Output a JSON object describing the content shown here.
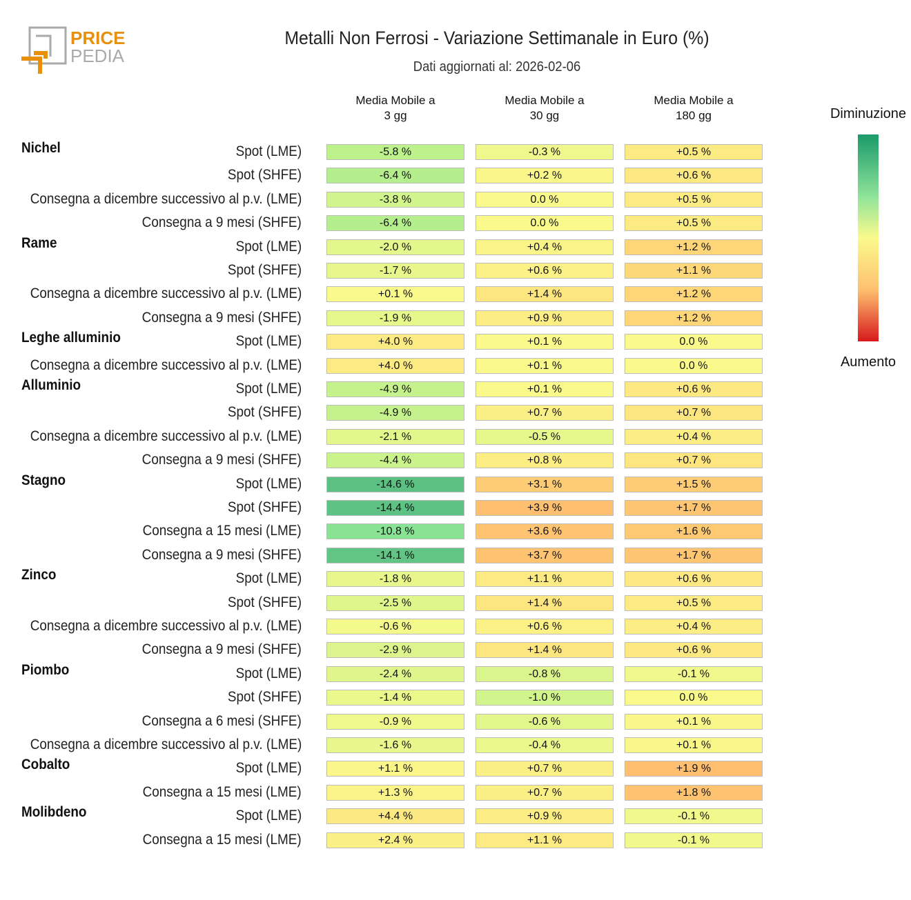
{
  "logo": {
    "line1": "PRICE",
    "line2": "PEDIA"
  },
  "chart_data": {
    "type": "heatmap",
    "title": "Metalli Non Ferrosi - Variazione Settimanale in Euro (%)",
    "subtitle": "Dati aggiornati al: 2026-02-06",
    "columns": [
      "Media Mobile a\n3 gg",
      "Media Mobile a\n30 gg",
      "Media Mobile a\n180 gg"
    ],
    "legend": {
      "top": "Diminuzione",
      "bottom": "Aumento",
      "colors": [
        "#1a9a6a",
        "#fafa8c",
        "#d7191c"
      ]
    },
    "rows": [
      {
        "group": "Nichel",
        "label": "Spot (LME)",
        "values": [
          -5.8,
          -0.3,
          0.5
        ]
      },
      {
        "group": "",
        "label": "Spot (SHFE)",
        "values": [
          -6.4,
          0.2,
          0.6
        ]
      },
      {
        "group": "",
        "label": "Consegna a dicembre successivo al p.v. (LME)",
        "values": [
          -3.8,
          0.0,
          0.5
        ]
      },
      {
        "group": "",
        "label": "Consegna a 9 mesi (SHFE)",
        "values": [
          -6.4,
          0.0,
          0.5
        ]
      },
      {
        "group": "Rame",
        "label": "Spot (LME)",
        "values": [
          -2.0,
          0.4,
          1.2
        ]
      },
      {
        "group": "",
        "label": "Spot (SHFE)",
        "values": [
          -1.7,
          0.6,
          1.1
        ]
      },
      {
        "group": "",
        "label": "Consegna a dicembre successivo al p.v. (LME)",
        "values": [
          0.1,
          1.4,
          1.2
        ]
      },
      {
        "group": "",
        "label": "Consegna a 9 mesi (SHFE)",
        "values": [
          -1.9,
          0.9,
          1.2
        ]
      },
      {
        "group": "Leghe alluminio",
        "label": "Spot (LME)",
        "values": [
          4.0,
          0.1,
          0.0
        ]
      },
      {
        "group": "",
        "label": "Consegna a dicembre successivo al p.v. (LME)",
        "values": [
          4.0,
          0.1,
          0.0
        ]
      },
      {
        "group": "Alluminio",
        "label": "Spot (LME)",
        "values": [
          -4.9,
          0.1,
          0.6
        ]
      },
      {
        "group": "",
        "label": "Spot (SHFE)",
        "values": [
          -4.9,
          0.7,
          0.7
        ]
      },
      {
        "group": "",
        "label": "Consegna a dicembre successivo al p.v. (LME)",
        "values": [
          -2.1,
          -0.5,
          0.4
        ]
      },
      {
        "group": "",
        "label": "Consegna a 9 mesi (SHFE)",
        "values": [
          -4.4,
          0.8,
          0.7
        ]
      },
      {
        "group": "Stagno",
        "label": "Spot (LME)",
        "values": [
          -14.6,
          3.1,
          1.5
        ]
      },
      {
        "group": "",
        "label": "Spot (SHFE)",
        "values": [
          -14.4,
          3.9,
          1.7
        ]
      },
      {
        "group": "",
        "label": "Consegna a 15 mesi (LME)",
        "values": [
          -10.8,
          3.6,
          1.6
        ]
      },
      {
        "group": "",
        "label": "Consegna a 9 mesi (SHFE)",
        "values": [
          -14.1,
          3.7,
          1.7
        ]
      },
      {
        "group": "Zinco",
        "label": "Spot (LME)",
        "values": [
          -1.8,
          1.1,
          0.6
        ]
      },
      {
        "group": "",
        "label": "Spot (SHFE)",
        "values": [
          -2.5,
          1.4,
          0.5
        ]
      },
      {
        "group": "",
        "label": "Consegna a dicembre successivo al p.v. (LME)",
        "values": [
          -0.6,
          0.6,
          0.4
        ]
      },
      {
        "group": "",
        "label": "Consegna a 9 mesi (SHFE)",
        "values": [
          -2.9,
          1.4,
          0.6
        ]
      },
      {
        "group": "Piombo",
        "label": "Spot (LME)",
        "values": [
          -2.4,
          -0.8,
          -0.1
        ]
      },
      {
        "group": "",
        "label": "Spot (SHFE)",
        "values": [
          -1.4,
          -1.0,
          0.0
        ]
      },
      {
        "group": "",
        "label": "Consegna a 6 mesi (SHFE)",
        "values": [
          -0.9,
          -0.6,
          0.1
        ]
      },
      {
        "group": "",
        "label": "Consegna a dicembre successivo al p.v. (LME)",
        "values": [
          -1.6,
          -0.4,
          0.1
        ]
      },
      {
        "group": "Cobalto",
        "label": "Spot (LME)",
        "values": [
          1.1,
          0.7,
          1.9
        ]
      },
      {
        "group": "",
        "label": "Consegna a 15 mesi (LME)",
        "values": [
          1.3,
          0.7,
          1.8
        ]
      },
      {
        "group": "Molibdeno",
        "label": "Spot (LME)",
        "values": [
          4.4,
          0.9,
          -0.1
        ]
      },
      {
        "group": "",
        "label": "Consegna a 15 mesi (LME)",
        "values": [
          2.4,
          1.1,
          -0.1
        ]
      }
    ]
  }
}
